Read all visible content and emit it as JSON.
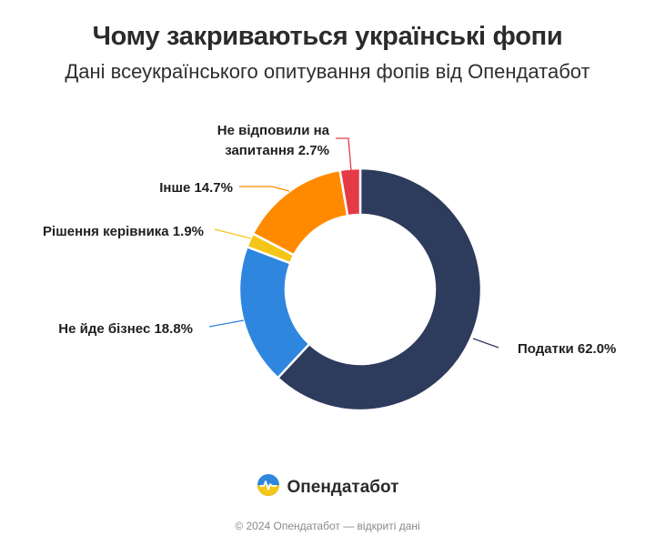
{
  "header": {
    "title": "Чому закриваються українські фопи",
    "subtitle": "Дані всеукраїнського опитування фопів від Опендатабот"
  },
  "chart_data": {
    "type": "pie",
    "style": "donut",
    "title": "Чому закриваються українські фопи",
    "subtitle": "Дані всеукраїнського опитування фопів від Опендатабот",
    "series": [
      {
        "label": "Податки",
        "value": 62.0,
        "display": "Податки 62.0%",
        "color": "#2d3b5c"
      },
      {
        "label": "Не йде бізнес",
        "value": 18.8,
        "display": "Не йде бізнес 18.8%",
        "color": "#2e86de"
      },
      {
        "label": "Рішення керівника",
        "value": 1.9,
        "display": "Рішення керівника 1.9%",
        "color": "#f5c518"
      },
      {
        "label": "Інше",
        "value": 14.7,
        "display": "Інше 14.7%",
        "color": "#ff8a00"
      },
      {
        "label": "Не відповили на запитання",
        "value": 2.7,
        "display_lines": [
          "Не відповили на",
          "запитання 2.7%"
        ],
        "color": "#e63946"
      }
    ],
    "unit": "%"
  },
  "brand": {
    "name": "Опендатабот",
    "icon": "opendatabot-logo-icon"
  },
  "footer": {
    "text": "© 2024 Опендатабот — відкриті дані"
  }
}
